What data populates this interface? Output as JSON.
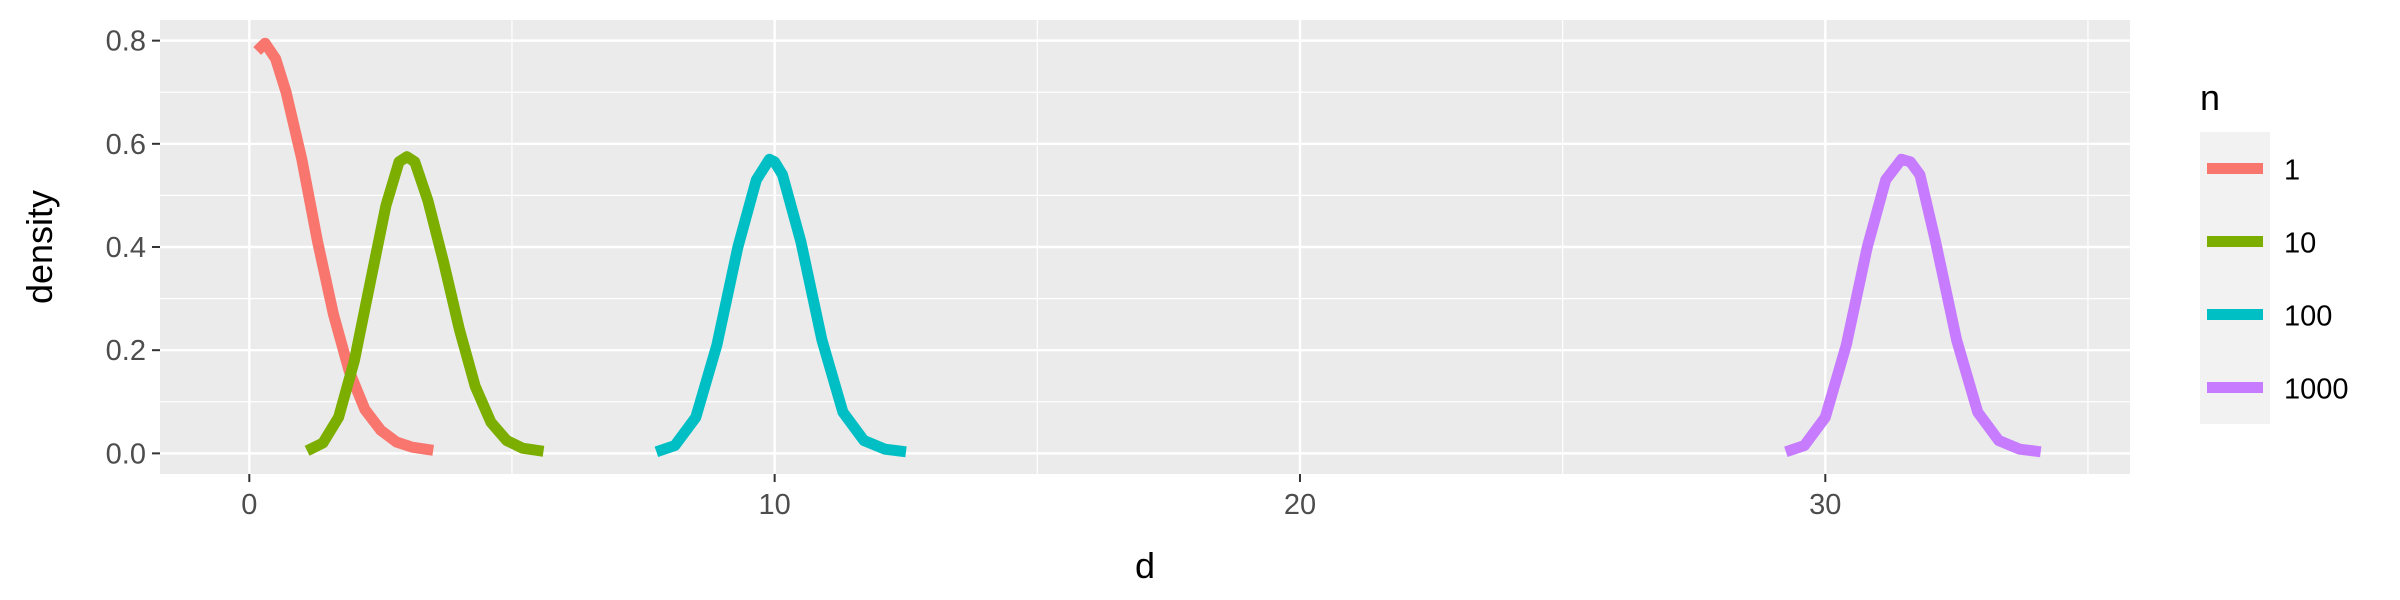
{
  "chart_data": {
    "type": "line",
    "xlabel": "d",
    "ylabel": "density",
    "xlim": [
      -1.7,
      35.8
    ],
    "ylim": [
      -0.04,
      0.84
    ],
    "x_ticks": [
      0,
      10,
      20,
      30
    ],
    "x_tick_labels": [
      "0",
      "10",
      "20",
      "30"
    ],
    "y_ticks": [
      0.0,
      0.2,
      0.4,
      0.6,
      0.8
    ],
    "y_tick_labels": [
      "0.0",
      "0.2",
      "0.4",
      "0.6",
      "0.8"
    ],
    "grid": true,
    "legend": {
      "title": "n",
      "position": "right"
    },
    "series": [
      {
        "name": "1",
        "color": "#F8766D",
        "x": [
          0.15,
          0.3,
          0.5,
          0.7,
          1.0,
          1.3,
          1.6,
          1.9,
          2.2,
          2.5,
          2.8,
          3.1,
          3.5
        ],
        "y": [
          0.78,
          0.795,
          0.765,
          0.7,
          0.57,
          0.41,
          0.27,
          0.16,
          0.085,
          0.045,
          0.022,
          0.012,
          0.006
        ]
      },
      {
        "name": "10",
        "color": "#7CAE00",
        "x": [
          1.1,
          1.4,
          1.7,
          2.0,
          2.3,
          2.6,
          2.85,
          3.0,
          3.15,
          3.4,
          3.7,
          4.0,
          4.3,
          4.6,
          4.9,
          5.2,
          5.6
        ],
        "y": [
          0.005,
          0.02,
          0.07,
          0.18,
          0.33,
          0.48,
          0.565,
          0.575,
          0.565,
          0.49,
          0.37,
          0.24,
          0.13,
          0.06,
          0.025,
          0.01,
          0.004
        ]
      },
      {
        "name": "100",
        "color": "#00BFC4",
        "x": [
          7.75,
          8.1,
          8.5,
          8.9,
          9.3,
          9.65,
          9.9,
          10.0,
          10.15,
          10.5,
          10.9,
          11.3,
          11.7,
          12.1,
          12.5
        ],
        "y": [
          0.003,
          0.015,
          0.07,
          0.21,
          0.4,
          0.53,
          0.57,
          0.565,
          0.54,
          0.41,
          0.22,
          0.08,
          0.025,
          0.008,
          0.003
        ]
      },
      {
        "name": "1000",
        "color": "#C77CFF",
        "x": [
          29.25,
          29.6,
          30.0,
          30.4,
          30.8,
          31.15,
          31.45,
          31.62,
          31.8,
          32.1,
          32.5,
          32.9,
          33.3,
          33.7,
          34.1
        ],
        "y": [
          0.003,
          0.015,
          0.07,
          0.21,
          0.4,
          0.53,
          0.57,
          0.565,
          0.54,
          0.41,
          0.22,
          0.08,
          0.025,
          0.008,
          0.003
        ]
      }
    ]
  }
}
